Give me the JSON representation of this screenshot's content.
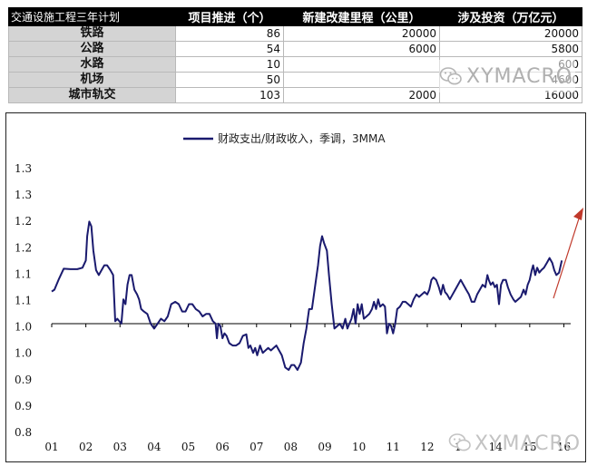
{
  "table": {
    "corner": "交通设施工程三年计划",
    "headers": [
      "项目推进（个）",
      "新建改建里程（公里）",
      "涉及投资（万亿元）"
    ],
    "rows": [
      {
        "name": "铁路",
        "projects": "86",
        "mileage": "20000",
        "investment": "20000"
      },
      {
        "name": "公路",
        "projects": "54",
        "mileage": "6000",
        "investment": "5800"
      },
      {
        "name": "水路",
        "projects": "10",
        "mileage": "",
        "investment": "600"
      },
      {
        "name": "机场",
        "projects": "50",
        "mileage": "",
        "investment": "4600"
      },
      {
        "name": "城市轨交",
        "projects": "103",
        "mileage": "2000",
        "investment": "16000"
      }
    ]
  },
  "watermark": {
    "text": "XYMACRO",
    "icon": "wechat-logo-icon"
  },
  "chart_data": {
    "type": "line",
    "legend_position": "top-center",
    "grid": false,
    "ylim": [
      0.8,
      1.35
    ],
    "y_ticks": [
      "1.3",
      "1.3",
      "1.2",
      "1.2",
      "1.1",
      "1.1",
      "1.0",
      "1.0",
      "0.9",
      "0.9",
      "0.8"
    ],
    "x_ticks": [
      "01",
      "02",
      "03",
      "04",
      "05",
      "06",
      "07",
      "08",
      "09",
      "10",
      "11",
      "12",
      "13",
      "14",
      "15",
      "16"
    ],
    "xlim": [
      2001,
      2016.2
    ],
    "series": [
      {
        "name": "财政支出/财政收入，季调，3MMA",
        "color": "#1a1a6e",
        "points": [
          [
            2001.0,
            1.086
          ],
          [
            2001.08,
            1.09
          ],
          [
            2001.2,
            1.11
          ],
          [
            2001.35,
            1.133
          ],
          [
            2001.55,
            1.132
          ],
          [
            2001.75,
            1.132
          ],
          [
            2001.9,
            1.135
          ],
          [
            2002.0,
            1.15
          ],
          [
            2002.04,
            1.2
          ],
          [
            2002.1,
            1.23
          ],
          [
            2002.16,
            1.22
          ],
          [
            2002.22,
            1.17
          ],
          [
            2002.3,
            1.13
          ],
          [
            2002.38,
            1.12
          ],
          [
            2002.46,
            1.13
          ],
          [
            2002.54,
            1.14
          ],
          [
            2002.62,
            1.14
          ],
          [
            2002.72,
            1.13
          ],
          [
            2002.8,
            1.12
          ],
          [
            2002.86,
            1.025
          ],
          [
            2002.92,
            1.03
          ],
          [
            2002.98,
            1.025
          ],
          [
            2003.04,
            1.02
          ],
          [
            2003.1,
            1.07
          ],
          [
            2003.16,
            1.06
          ],
          [
            2003.22,
            1.1
          ],
          [
            2003.28,
            1.12
          ],
          [
            2003.34,
            1.12
          ],
          [
            2003.42,
            1.09
          ],
          [
            2003.5,
            1.08
          ],
          [
            2003.56,
            1.07
          ],
          [
            2003.62,
            1.05
          ],
          [
            2003.7,
            1.045
          ],
          [
            2003.8,
            1.04
          ],
          [
            2003.9,
            1.02
          ],
          [
            2004.0,
            1.01
          ],
          [
            2004.1,
            1.02
          ],
          [
            2004.2,
            1.03
          ],
          [
            2004.3,
            1.025
          ],
          [
            2004.4,
            1.035
          ],
          [
            2004.5,
            1.06
          ],
          [
            2004.62,
            1.065
          ],
          [
            2004.72,
            1.06
          ],
          [
            2004.82,
            1.045
          ],
          [
            2004.92,
            1.045
          ],
          [
            2005.02,
            1.06
          ],
          [
            2005.12,
            1.06
          ],
          [
            2005.22,
            1.05
          ],
          [
            2005.32,
            1.045
          ],
          [
            2005.42,
            1.035
          ],
          [
            2005.52,
            1.04
          ],
          [
            2005.62,
            1.04
          ],
          [
            2005.72,
            1.025
          ],
          [
            2005.8,
            1.02
          ],
          [
            2005.84,
            0.99
          ],
          [
            2005.88,
            1.02
          ],
          [
            2005.94,
            1.015
          ],
          [
            2006.0,
            0.99
          ],
          [
            2006.06,
            1.0
          ],
          [
            2006.12,
            0.995
          ],
          [
            2006.2,
            0.98
          ],
          [
            2006.3,
            0.975
          ],
          [
            2006.4,
            0.975
          ],
          [
            2006.5,
            0.98
          ],
          [
            2006.6,
            0.995
          ],
          [
            2006.7,
            0.998
          ],
          [
            2006.76,
            0.97
          ],
          [
            2006.82,
            0.975
          ],
          [
            2006.9,
            0.96
          ],
          [
            2006.96,
            0.97
          ],
          [
            2007.02,
            0.955
          ],
          [
            2007.1,
            0.975
          ],
          [
            2007.18,
            0.96
          ],
          [
            2007.26,
            0.965
          ],
          [
            2007.34,
            0.97
          ],
          [
            2007.42,
            0.965
          ],
          [
            2007.5,
            0.97
          ],
          [
            2007.58,
            0.975
          ],
          [
            2007.66,
            0.965
          ],
          [
            2007.74,
            0.955
          ],
          [
            2007.84,
            0.93
          ],
          [
            2007.94,
            0.925
          ],
          [
            2008.02,
            0.935
          ],
          [
            2008.1,
            0.935
          ],
          [
            2008.2,
            0.925
          ],
          [
            2008.3,
            0.94
          ],
          [
            2008.38,
            0.98
          ],
          [
            2008.46,
            1.01
          ],
          [
            2008.54,
            1.05
          ],
          [
            2008.62,
            1.05
          ],
          [
            2008.72,
            1.1
          ],
          [
            2008.8,
            1.14
          ],
          [
            2008.86,
            1.18
          ],
          [
            2008.92,
            1.2
          ],
          [
            2008.98,
            1.185
          ],
          [
            2009.06,
            1.17
          ],
          [
            2009.12,
            1.12
          ],
          [
            2009.2,
            1.06
          ],
          [
            2009.28,
            1.01
          ],
          [
            2009.36,
            1.015
          ],
          [
            2009.44,
            1.02
          ],
          [
            2009.52,
            1.01
          ],
          [
            2009.6,
            1.03
          ],
          [
            2009.66,
            1.01
          ],
          [
            2009.72,
            1.02
          ],
          [
            2009.78,
            1.03
          ],
          [
            2009.84,
            1.05
          ],
          [
            2009.9,
            1.02
          ],
          [
            2009.96,
            1.06
          ],
          [
            2010.02,
            1.04
          ],
          [
            2010.08,
            1.06
          ],
          [
            2010.14,
            1.03
          ],
          [
            2010.22,
            1.035
          ],
          [
            2010.3,
            1.04
          ],
          [
            2010.38,
            1.05
          ],
          [
            2010.44,
            1.065
          ],
          [
            2010.5,
            1.05
          ],
          [
            2010.56,
            1.07
          ],
          [
            2010.62,
            1.055
          ],
          [
            2010.7,
            1.06
          ],
          [
            2010.76,
            1.055
          ],
          [
            2010.82,
            1.0
          ],
          [
            2010.88,
            1.02
          ],
          [
            2010.94,
            1.015
          ],
          [
            2011.0,
            1.0
          ],
          [
            2011.06,
            1.02
          ],
          [
            2011.12,
            1.05
          ],
          [
            2011.2,
            1.055
          ],
          [
            2011.28,
            1.065
          ],
          [
            2011.36,
            1.065
          ],
          [
            2011.44,
            1.06
          ],
          [
            2011.52,
            1.055
          ],
          [
            2011.6,
            1.07
          ],
          [
            2011.68,
            1.08
          ],
          [
            2011.76,
            1.075
          ],
          [
            2011.84,
            1.08
          ],
          [
            2011.92,
            1.085
          ],
          [
            2012.0,
            1.08
          ],
          [
            2012.06,
            1.09
          ],
          [
            2012.12,
            1.11
          ],
          [
            2012.18,
            1.115
          ],
          [
            2012.26,
            1.11
          ],
          [
            2012.34,
            1.095
          ],
          [
            2012.4,
            1.08
          ],
          [
            2012.46,
            1.1
          ],
          [
            2012.52,
            1.085
          ],
          [
            2012.58,
            1.08
          ],
          [
            2012.66,
            1.07
          ],
          [
            2012.74,
            1.08
          ],
          [
            2012.82,
            1.09
          ],
          [
            2012.9,
            1.1
          ],
          [
            2012.98,
            1.11
          ],
          [
            2013.06,
            1.1
          ],
          [
            2013.14,
            1.09
          ],
          [
            2013.22,
            1.08
          ],
          [
            2013.3,
            1.065
          ],
          [
            2013.38,
            1.065
          ],
          [
            2013.46,
            1.08
          ],
          [
            2013.54,
            1.09
          ],
          [
            2013.62,
            1.1
          ],
          [
            2013.7,
            1.095
          ],
          [
            2013.76,
            1.12
          ],
          [
            2013.8,
            1.11
          ],
          [
            2013.86,
            1.1
          ],
          [
            2013.92,
            1.105
          ],
          [
            2013.98,
            1.095
          ],
          [
            2014.04,
            1.1
          ],
          [
            2014.1,
            1.06
          ],
          [
            2014.16,
            1.1
          ],
          [
            2014.22,
            1.11
          ],
          [
            2014.3,
            1.11
          ],
          [
            2014.36,
            1.095
          ],
          [
            2014.44,
            1.08
          ],
          [
            2014.52,
            1.07
          ],
          [
            2014.58,
            1.065
          ],
          [
            2014.66,
            1.07
          ],
          [
            2014.74,
            1.075
          ],
          [
            2014.82,
            1.09
          ],
          [
            2014.88,
            1.08
          ],
          [
            2014.94,
            1.1
          ],
          [
            2015.0,
            1.11
          ],
          [
            2015.06,
            1.13
          ],
          [
            2015.1,
            1.14
          ],
          [
            2015.16,
            1.12
          ],
          [
            2015.22,
            1.135
          ],
          [
            2015.28,
            1.125
          ],
          [
            2015.34,
            1.13
          ],
          [
            2015.42,
            1.135
          ],
          [
            2015.5,
            1.145
          ],
          [
            2015.58,
            1.155
          ],
          [
            2015.66,
            1.145
          ],
          [
            2015.72,
            1.13
          ],
          [
            2015.78,
            1.12
          ],
          [
            2015.86,
            1.125
          ],
          [
            2015.94,
            1.15
          ]
        ]
      }
    ]
  }
}
